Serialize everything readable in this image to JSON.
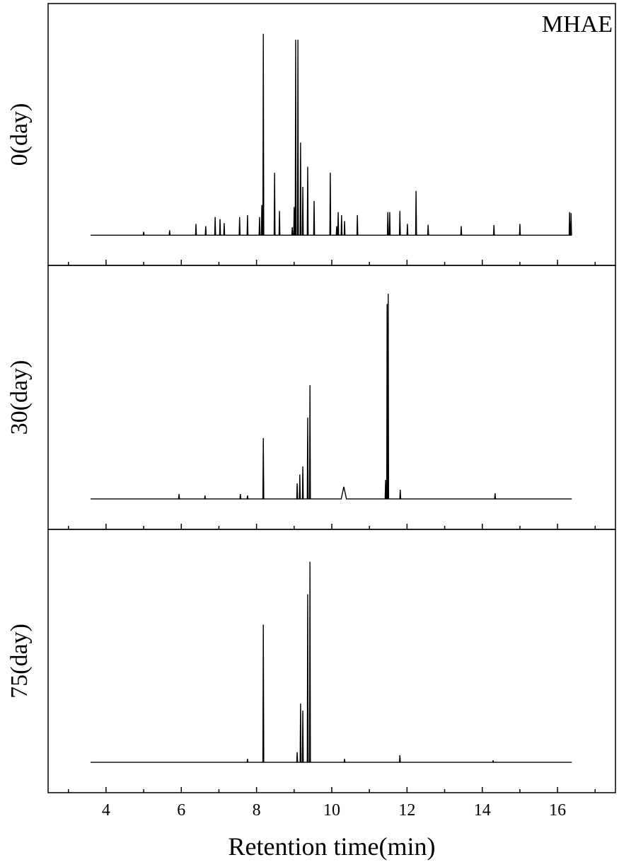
{
  "chart_data": [
    {
      "type": "line",
      "ylabel": "0(day)",
      "annotation": "MHAE",
      "color": "#000000",
      "xlim": [
        2.46,
        17.54
      ],
      "ylim": [
        -15,
        115
      ],
      "xticks": [
        4,
        6,
        8,
        10,
        12,
        14,
        16
      ],
      "xminorticks": [
        3,
        5,
        7,
        9,
        11,
        13,
        15,
        17
      ],
      "x": [
        3.59,
        4.988,
        5.0,
        5.012,
        5.678,
        5.69,
        5.702,
        6.378,
        6.39,
        6.402,
        6.638,
        6.65,
        6.662,
        6.888,
        6.9,
        6.912,
        7.018,
        7.03,
        7.042,
        7.128,
        7.14,
        7.152,
        7.538,
        7.55,
        7.562,
        7.748,
        7.76,
        7.772,
        8.068,
        8.08,
        8.092,
        8.128,
        8.14,
        8.152,
        8.168,
        8.18,
        8.192,
        8.468,
        8.48,
        8.492,
        8.598,
        8.61,
        8.622,
        8.938,
        8.95,
        8.962,
        8.988,
        9.0,
        9.012,
        9.028,
        9.04,
        9.052,
        9.088,
        9.1,
        9.112,
        9.158,
        9.17,
        9.182,
        9.218,
        9.23,
        9.242,
        9.348,
        9.36,
        9.372,
        9.518,
        9.53,
        9.542,
        9.948,
        9.96,
        9.972,
        10.118,
        10.13,
        10.142,
        10.158,
        10.17,
        10.182,
        10.248,
        10.26,
        10.272,
        10.328,
        10.34,
        10.352,
        10.668,
        10.68,
        10.692,
        11.478,
        11.49,
        11.502,
        11.528,
        11.54,
        11.552,
        11.798,
        11.81,
        11.822,
        11.998,
        12.01,
        12.022,
        12.228,
        12.24,
        12.252,
        12.548,
        12.56,
        12.572,
        13.428,
        13.44,
        13.452,
        14.298,
        14.31,
        14.322,
        14.988,
        15.0,
        15.012,
        16.308,
        16.32,
        16.332,
        16.348,
        16.36,
        16.372,
        16.38
      ],
      "values": [
        0,
        0,
        1.7,
        0,
        0,
        2.4,
        0,
        0,
        5.6,
        0,
        0,
        4.5,
        0,
        0,
        9,
        0,
        0,
        8,
        0,
        0,
        6,
        0,
        0,
        9,
        0,
        0,
        10,
        0,
        0,
        9,
        0,
        0,
        15,
        0,
        0,
        100,
        0,
        0,
        31,
        0,
        0,
        12,
        0,
        0,
        4,
        0,
        0,
        14,
        0,
        0,
        97,
        0,
        0,
        97,
        0,
        0,
        46,
        0,
        0,
        24,
        0,
        0,
        34,
        0,
        0,
        17,
        0,
        0,
        31,
        0,
        0,
        4.5,
        0,
        0,
        11.5,
        0,
        0,
        10,
        0,
        0,
        7,
        0,
        0,
        10,
        0,
        0,
        11.5,
        0,
        0,
        11.5,
        0,
        0,
        12,
        0,
        0,
        5.6,
        0,
        0,
        22,
        0,
        0,
        5.2,
        0,
        0,
        4.5,
        0,
        0,
        5,
        0,
        0,
        5.6,
        0,
        0,
        11.5,
        0,
        0,
        11,
        0,
        0
      ]
    },
    {
      "type": "line",
      "ylabel": "30(day)",
      "color": "#000000",
      "xlim": [
        2.46,
        17.54
      ],
      "ylim": [
        -15,
        115
      ],
      "xticks": [
        4,
        6,
        8,
        10,
        12,
        14,
        16
      ],
      "xminorticks": [
        3,
        5,
        7,
        9,
        11,
        13,
        15,
        17
      ],
      "x": [
        3.59,
        5.928,
        5.94,
        5.952,
        6.618,
        6.63,
        6.642,
        7.558,
        7.57,
        7.582,
        7.748,
        7.76,
        7.772,
        8.168,
        8.18,
        8.192,
        9.068,
        9.08,
        9.092,
        9.138,
        9.15,
        9.162,
        9.218,
        9.23,
        9.242,
        9.348,
        9.36,
        9.372,
        9.408,
        9.42,
        9.432,
        10.25,
        10.32,
        10.39,
        11.418,
        11.43,
        11.442,
        11.46,
        11.47,
        11.48,
        11.49,
        11.5,
        11.51,
        11.808,
        11.82,
        11.832,
        14.328,
        14.34,
        14.352,
        16.38
      ],
      "values": [
        0,
        0,
        2.4,
        0,
        0,
        1.7,
        0,
        0,
        2.4,
        0,
        0,
        1.7,
        0,
        0,
        30,
        0,
        0,
        7.7,
        0,
        0,
        12,
        0,
        0,
        16,
        0,
        0,
        40,
        0,
        0,
        56,
        0,
        0,
        6,
        0,
        0,
        9.4,
        0,
        0,
        96,
        0,
        0,
        101,
        0,
        0,
        4.5,
        0,
        0,
        2.8,
        0,
        0
      ]
    },
    {
      "type": "line",
      "ylabel": "75(day)",
      "xlabel": "Retention time(min)",
      "color": "#000000",
      "xlim": [
        2.46,
        17.54
      ],
      "ylim": [
        -15,
        115
      ],
      "xticks": [
        4,
        6,
        8,
        10,
        12,
        14,
        16
      ],
      "xminorticks": [
        3,
        5,
        7,
        9,
        11,
        13,
        15,
        17
      ],
      "x": [
        3.59,
        7.748,
        7.76,
        7.772,
        8.168,
        8.18,
        8.192,
        9.068,
        9.08,
        9.092,
        9.158,
        9.17,
        9.182,
        9.218,
        9.23,
        9.242,
        9.348,
        9.36,
        9.372,
        9.408,
        9.42,
        9.432,
        10.328,
        10.34,
        10.352,
        11.798,
        11.81,
        11.822,
        14.278,
        14.29,
        14.302,
        16.38
      ],
      "values": [
        0,
        0,
        1.7,
        0,
        0,
        68,
        0,
        0,
        5,
        0,
        0,
        29,
        0,
        0,
        25.5,
        0,
        0,
        83,
        0,
        0,
        99,
        0,
        0,
        1.7,
        0,
        0,
        3.5,
        0,
        0,
        1,
        0,
        0
      ]
    }
  ]
}
